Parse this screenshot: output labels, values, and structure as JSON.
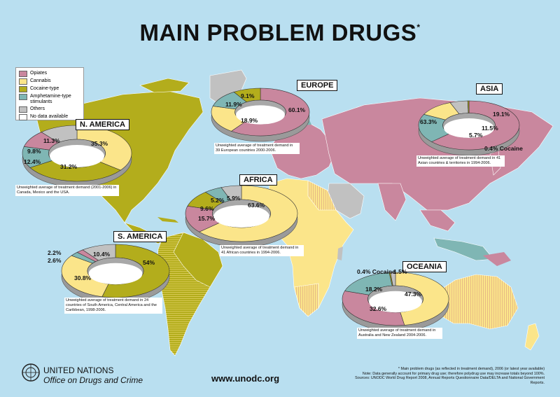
{
  "title": "MAIN PROBLEM DRUGS",
  "title_mark": "*",
  "colors": {
    "opiates": "#c9879e",
    "cannabis": "#fbe58a",
    "cocaine": "#b3ad1c",
    "amphetamine": "#7fb6b4",
    "others": "#c1c1c1",
    "no_data": "#ffffff",
    "ocean": "#b9dff0"
  },
  "legend": [
    {
      "label": "Opiates",
      "key": "opiates"
    },
    {
      "label": "Cannabis",
      "key": "cannabis"
    },
    {
      "label": "Cocaine-type",
      "key": "cocaine"
    },
    {
      "label": "Amphetamine-type stimulants",
      "key": "amphetamine"
    },
    {
      "label": "Others",
      "key": "others"
    },
    {
      "label": "No data available",
      "key": "no_data"
    }
  ],
  "regions": {
    "europe": {
      "name": "EUROPE",
      "note": "Unweighted average of treatment demand in 39 European countries 2000-2006.",
      "slices": [
        {
          "drug": "opiates",
          "value": 60.1,
          "label": "60.1%"
        },
        {
          "drug": "cannabis",
          "value": 18.9,
          "label": "18.9%"
        },
        {
          "drug": "amphetamine",
          "value": 11.9,
          "label": "11.9%"
        },
        {
          "drug": "cocaine",
          "value": 9.1,
          "label": "9.1%"
        }
      ]
    },
    "asia": {
      "name": "ASIA",
      "note": "Unweighted average of treatment demand in 41 Asian countries & territories in 1994-2006.",
      "slices": [
        {
          "drug": "opiates",
          "value": 63.3,
          "label": "63.3%"
        },
        {
          "drug": "amphetamine",
          "value": 19.1,
          "label": "19.1%"
        },
        {
          "drug": "cannabis",
          "value": 11.5,
          "label": "11.5%"
        },
        {
          "drug": "others",
          "value": 5.7,
          "label": "5.7%"
        },
        {
          "drug": "cocaine",
          "value": 0.4,
          "label": "0.4% Cocaine"
        }
      ]
    },
    "n_america": {
      "name": "N. AMERICA",
      "note": "Unweighted average of treatment demand (2001-2006) in Canada, Mexico and the USA.",
      "slices": [
        {
          "drug": "cannabis",
          "value": 35.3,
          "label": "35.3%"
        },
        {
          "drug": "cocaine",
          "value": 31.2,
          "label": "31.2%"
        },
        {
          "drug": "amphetamine",
          "value": 12.4,
          "label": "12.4%"
        },
        {
          "drug": "opiates",
          "value": 9.8,
          "label": "9.8%"
        },
        {
          "drug": "others",
          "value": 11.3,
          "label": "11.3%"
        }
      ]
    },
    "africa": {
      "name": "AFRICA",
      "note": "Unweighted average of treatment demand in 41 African countries in 1994-2006.",
      "slices": [
        {
          "drug": "cannabis",
          "value": 63.6,
          "label": "63.6%"
        },
        {
          "drug": "opiates",
          "value": 15.7,
          "label": "15.7%"
        },
        {
          "drug": "cocaine",
          "value": 9.6,
          "label": "9.6%"
        },
        {
          "drug": "amphetamine",
          "value": 5.2,
          "label": "5.2%"
        },
        {
          "drug": "others",
          "value": 5.9,
          "label": "5.9%"
        }
      ]
    },
    "s_america": {
      "name": "S. AMERICA",
      "note": "Unweighted average of treatment demand in 24 countries of South America, Central America and the Caribbean, 1998-2006.",
      "slices": [
        {
          "drug": "cocaine",
          "value": 54,
          "label": "54%"
        },
        {
          "drug": "cannabis",
          "value": 30.8,
          "label": "30.8%"
        },
        {
          "drug": "amphetamine",
          "value": 2.6,
          "label": "2.6%"
        },
        {
          "drug": "opiates",
          "value": 2.2,
          "label": "2.2%"
        },
        {
          "drug": "others",
          "value": 10.4,
          "label": "10.4%"
        }
      ]
    },
    "oceania": {
      "name": "OCEANIA",
      "note": "Unweighted average of treatment demand in Australia and New Zealand 2004-2006.",
      "slices": [
        {
          "drug": "cannabis",
          "value": 47.3,
          "label": "47.3%"
        },
        {
          "drug": "opiates",
          "value": 32.6,
          "label": "32.6%"
        },
        {
          "drug": "amphetamine",
          "value": 18.2,
          "label": "18.2%"
        },
        {
          "drug": "cocaine",
          "value": 0.4,
          "label": "0.4% Cocaine"
        },
        {
          "drug": "others",
          "value": 1.5,
          "label": "1.5%"
        }
      ]
    }
  },
  "footer": {
    "org_line1": "UNITED NATIONS",
    "org_line2": "Office on Drugs and Crime",
    "url": "www.unodc.org",
    "footnote1": "* Main problem drugs (as reflected in treatment demand), 2006 (or latest year available)",
    "footnote2": "Note: Data generally account for primary drug use; therefore polydrug use may increase totals beyond 100%.",
    "footnote3": "Sources: UNODC World Drug Report 2008, Annual Reports Questionnaire Data/DELTA and National Government Reports."
  }
}
